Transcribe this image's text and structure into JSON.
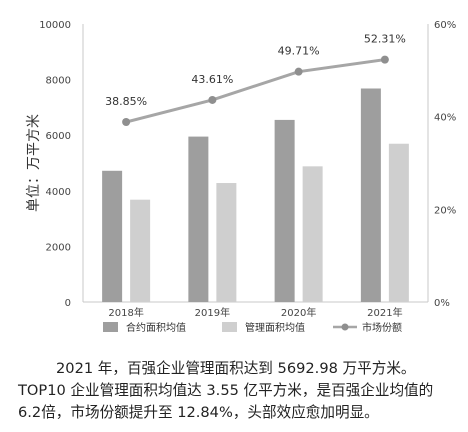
{
  "chart_data": {
    "type": "bar",
    "ylabel": "单位：万平方米",
    "categories": [
      "2018年",
      "2019年",
      "2020年",
      "2021年"
    ],
    "ylim": [
      0,
      10000
    ],
    "yticks": [
      "0",
      "2000",
      "4000",
      "6000",
      "8000",
      "10000"
    ],
    "y2lim": [
      0,
      60
    ],
    "y2ticks": [
      "0%",
      "20%",
      "40%",
      "60%"
    ],
    "series": [
      {
        "name": "合约面积均值",
        "kind": "bar",
        "color": "#9e9e9e",
        "values": [
          4720,
          5950,
          6550,
          7680
        ]
      },
      {
        "name": "管理面积均值",
        "kind": "bar",
        "color": "#cfcfcf",
        "values": [
          3680,
          4280,
          4880,
          5693
        ]
      },
      {
        "name": "市场份额",
        "kind": "line",
        "axis": "right",
        "color": "#a6a6a6",
        "values": [
          38.85,
          43.61,
          49.71,
          52.31
        ],
        "labels": [
          "38.85%",
          "43.61%",
          "49.71%",
          "52.31%"
        ]
      }
    ],
    "legend_position": "bottom",
    "grid": false
  },
  "caption": {
    "line1": "2021 年，百强企业管理面积达到 5692.98 万平方米。",
    "line2": "TOP10 企业管理面积均值达 3.55 亿平方米，是百强企业均值的 6.2倍，市场份额提升至 12.84%，头部效应愈加明显。"
  }
}
